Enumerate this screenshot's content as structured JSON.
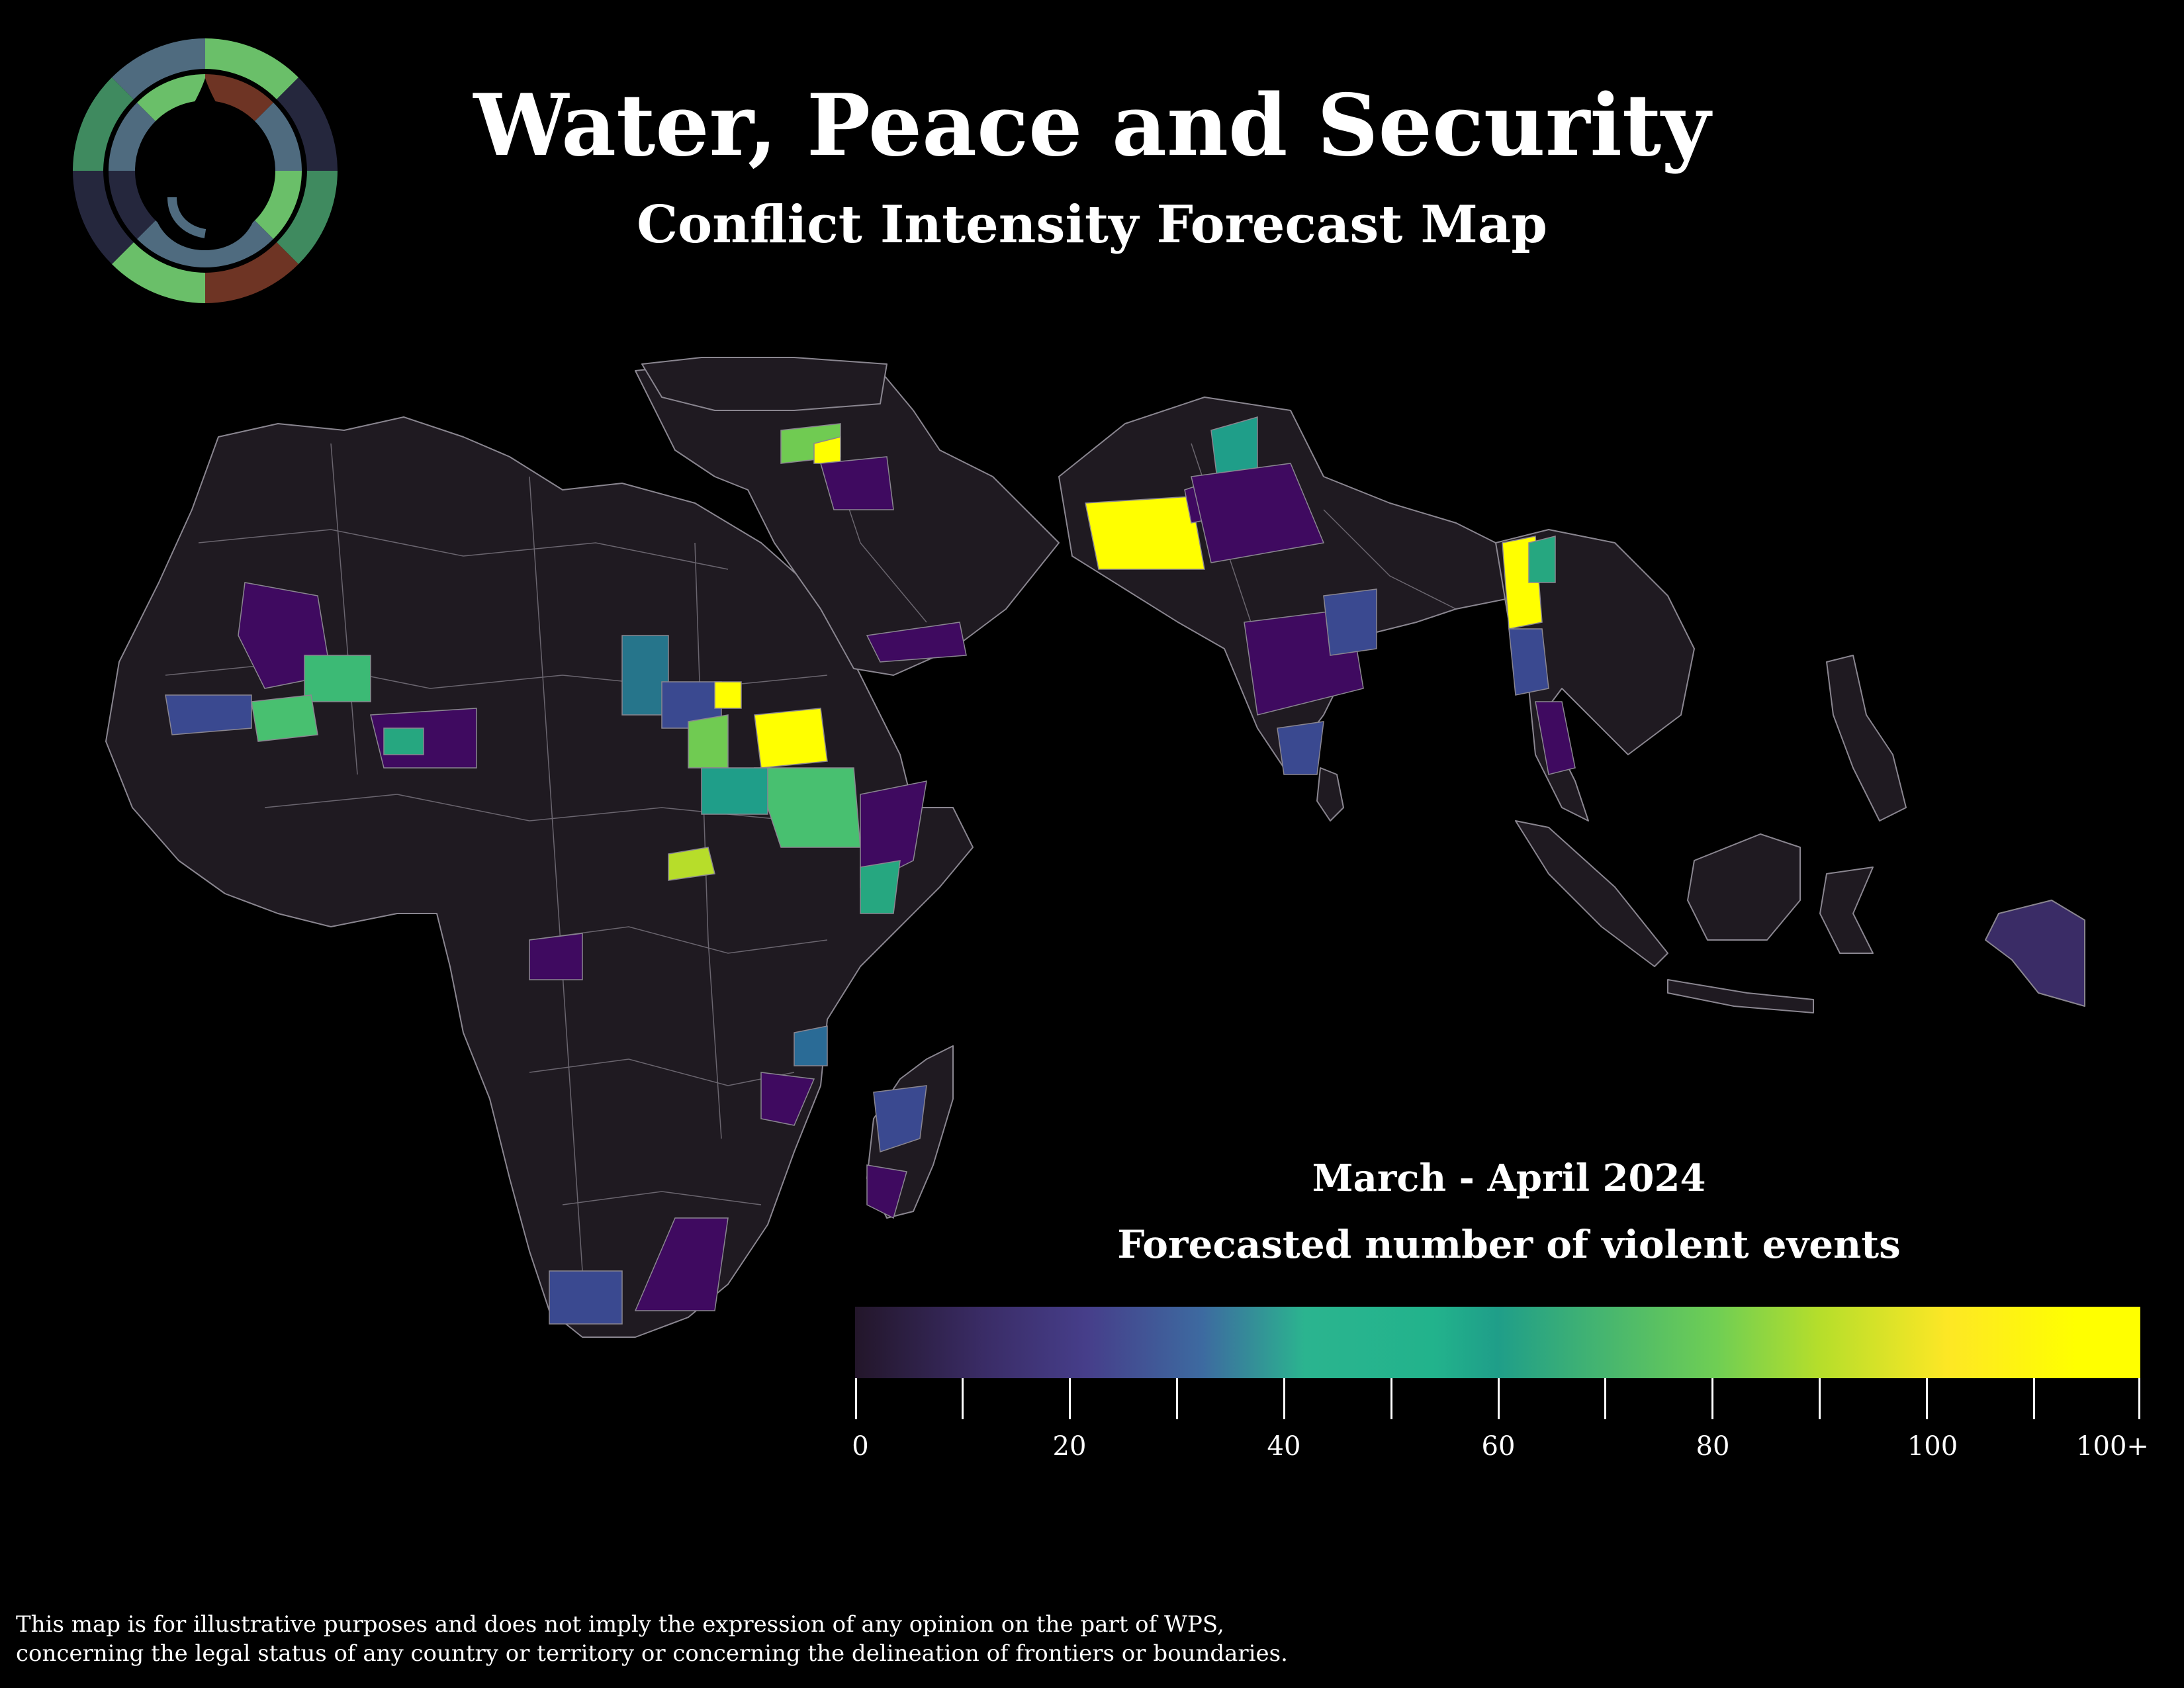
{
  "header": {
    "title": "Water, Peace and Security",
    "subtitle": "Conflict Intensity Forecast Map"
  },
  "legend": {
    "period": "March - April 2024",
    "title": "Forecasted number of violent events",
    "tick_labels": [
      "0",
      "20",
      "40",
      "60",
      "80",
      "100",
      "100+"
    ],
    "colorscale": [
      "#23162a",
      "#463e8a",
      "#2bb48f",
      "#1f9e89",
      "#6fce54",
      "#fde725",
      "#ffff00"
    ],
    "range": [
      0,
      120
    ]
  },
  "map": {
    "land_color": "#1f1a21",
    "border_color": "#8a8690",
    "regions_shown": [
      "Africa",
      "Middle East",
      "South Asia",
      "Southeast Asia"
    ]
  },
  "logo": {
    "colors": [
      "#4f6b7f",
      "#6abf69",
      "#6e3424",
      "#25273d",
      "#3f6e6a"
    ]
  },
  "disclaimer": {
    "line1": "This map is for illustrative purposes and does not imply the expression of any opinion on the part of WPS,",
    "line2": "concerning the legal status of any country or territory or concerning the delineation of frontiers or boundaries."
  }
}
